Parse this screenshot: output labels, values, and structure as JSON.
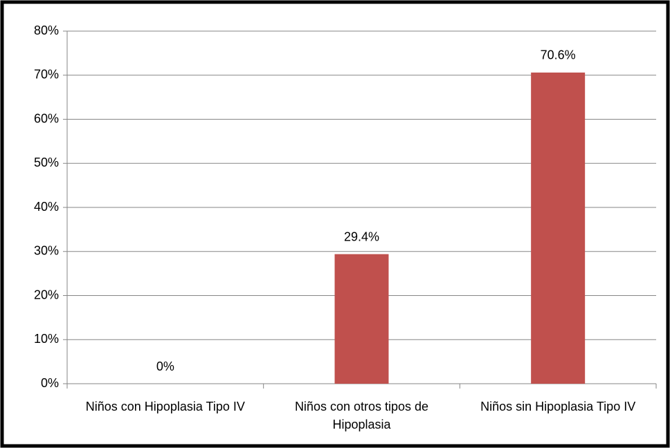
{
  "chart_data": {
    "type": "bar",
    "categories": [
      "Niños con Hipoplasia Tipo IV",
      "Niños con otros tipos de Hipoplasia",
      "Niños sin Hipoplasia Tipo IV"
    ],
    "values": [
      0,
      29.4,
      70.6
    ],
    "value_labels": [
      "0%",
      "29.4%",
      "70.6%"
    ],
    "color": "#c0504d",
    "ylim": [
      0,
      80
    ],
    "yticks": [
      {
        "value": 0,
        "label": "0%"
      },
      {
        "value": 10,
        "label": "10%"
      },
      {
        "value": 20,
        "label": "20%"
      },
      {
        "value": 30,
        "label": "30%"
      },
      {
        "value": 40,
        "label": "40%"
      },
      {
        "value": 50,
        "label": "50%"
      },
      {
        "value": 60,
        "label": "60%"
      },
      {
        "value": 70,
        "label": "70%"
      },
      {
        "value": 80,
        "label": "80%"
      }
    ],
    "grid": true
  }
}
